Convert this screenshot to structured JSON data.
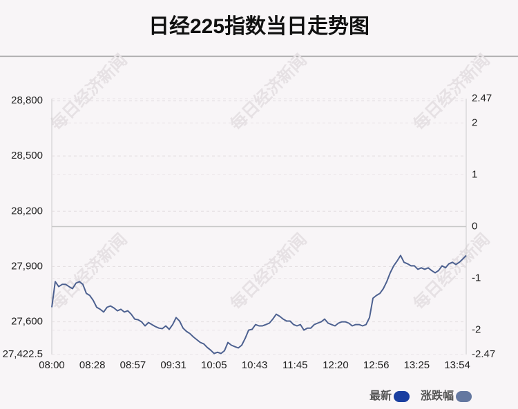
{
  "chart_data": {
    "type": "line",
    "title": "日经225指数当日走势图",
    "watermark": "每日经济新闻",
    "xtick_labels": [
      "08:00",
      "08:28",
      "08:57",
      "09:31",
      "10:05",
      "10:43",
      "11:45",
      "12:20",
      "12:56",
      "13:25",
      "13:54"
    ],
    "line_color": "#4d6190",
    "series": [
      {
        "name": "最新",
        "color": "#1a3fa0",
        "values": [
          27679,
          27818,
          27791,
          27803,
          27803,
          27791,
          27780,
          27810,
          27818,
          27803,
          27754,
          27743,
          27716,
          27679,
          27668,
          27653,
          27679,
          27686,
          27675,
          27660,
          27668,
          27653,
          27660,
          27641,
          27615,
          27611,
          27600,
          27578,
          27596,
          27585,
          27574,
          27566,
          27563,
          27578,
          27559,
          27585,
          27623,
          27604,
          27566,
          27548,
          27536,
          27518,
          27503,
          27488,
          27480,
          27461,
          27446,
          27428,
          27435,
          27428,
          27443,
          27488,
          27473,
          27465,
          27458,
          27473,
          27510,
          27555,
          27559,
          27585,
          27578,
          27578,
          27585,
          27593,
          27615,
          27641,
          27630,
          27615,
          27604,
          27604,
          27585,
          27578,
          27585,
          27555,
          27566,
          27566,
          27585,
          27593,
          27600,
          27615,
          27593,
          27585,
          27578,
          27593,
          27600,
          27600,
          27593,
          27578,
          27585,
          27585,
          27578,
          27585,
          27623,
          27728,
          27743,
          27754,
          27780,
          27818,
          27866,
          27904,
          27930,
          27960,
          27923,
          27915,
          27904,
          27904,
          27885,
          27893,
          27885,
          27893,
          27878,
          27866,
          27878,
          27904,
          27893,
          27915,
          27923,
          27911,
          27923,
          27941,
          27960
        ]
      }
    ],
    "legend": [
      {
        "name": "最新",
        "color": "#1a3fa0"
      },
      {
        "name": "涨跌幅",
        "color": "#6478a0"
      }
    ],
    "ylim": [
      27422.5,
      28800
    ],
    "yticks": [
      {
        "value": 27422.5,
        "label": "27,422.5"
      },
      {
        "value": 27600,
        "label": "27,600"
      },
      {
        "value": 27900,
        "label": "27,900"
      },
      {
        "value": 28200,
        "label": "28,200"
      },
      {
        "value": 28500,
        "label": "28,500"
      },
      {
        "value": 28800,
        "label": "28,800"
      }
    ],
    "y2lim": [
      -2.47,
      2.47
    ],
    "y2ticks": [
      -2.47,
      -2,
      -1,
      0,
      1,
      2,
      2.47
    ],
    "grid": true
  }
}
